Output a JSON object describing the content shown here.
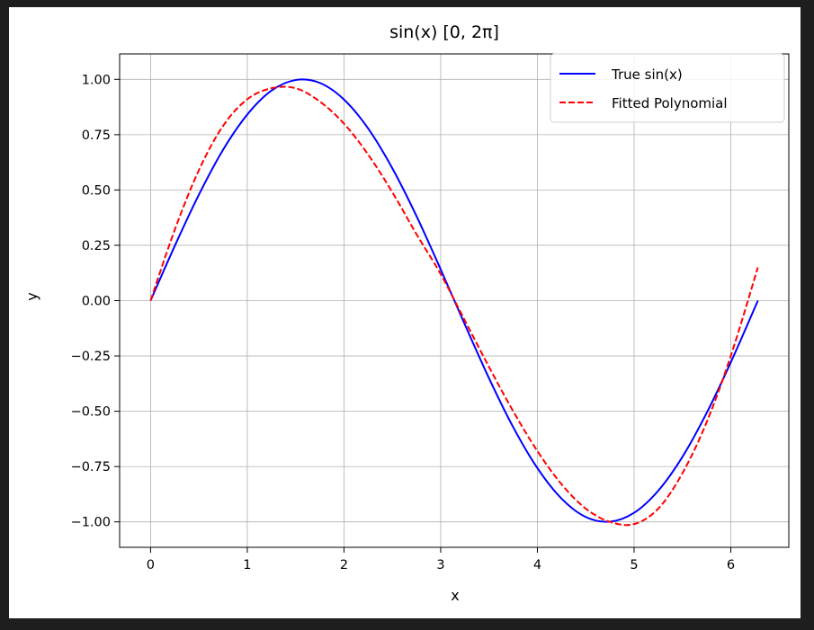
{
  "chart_data": {
    "type": "line",
    "title": "sin(x) [0, 2π]",
    "xlabel": "x",
    "ylabel": "y",
    "xlim": [
      -0.32,
      6.6
    ],
    "ylim": [
      -1.115,
      1.115
    ],
    "xticks": [
      0,
      1,
      2,
      3,
      4,
      5,
      6
    ],
    "xtick_labels": [
      "0",
      "1",
      "2",
      "3",
      "4",
      "5",
      "6"
    ],
    "yticks": [
      1.0,
      0.75,
      0.5,
      0.25,
      0.0,
      -0.25,
      -0.5,
      -0.75,
      -1.0
    ],
    "ytick_labels": [
      "1.00",
      "0.75",
      "0.50",
      "0.25",
      "0.00",
      "−0.25",
      "−0.50",
      "−0.75",
      "−1.00"
    ],
    "grid": true,
    "legend": {
      "placement": "top-right",
      "entries": [
        "True sin(x)",
        "Fitted Polynomial"
      ]
    },
    "series": [
      {
        "name": "True sin(x)",
        "color": "#0000ff",
        "style": "solid",
        "x": [
          0,
          0.25,
          0.5,
          0.75,
          1.0,
          1.25,
          1.5,
          1.75,
          2.0,
          2.25,
          2.5,
          2.75,
          3.0,
          3.25,
          3.5,
          3.75,
          4.0,
          4.25,
          4.5,
          4.75,
          5.0,
          5.25,
          5.5,
          5.75,
          6.0,
          6.28
        ],
        "y": [
          0.0,
          0.247,
          0.479,
          0.682,
          0.841,
          0.949,
          0.997,
          0.984,
          0.909,
          0.778,
          0.598,
          0.382,
          0.141,
          -0.108,
          -0.351,
          -0.572,
          -0.757,
          -0.895,
          -0.978,
          -0.999,
          -0.959,
          -0.859,
          -0.706,
          -0.508,
          -0.279,
          0.0
        ]
      },
      {
        "name": "Fitted Polynomial",
        "color": "#ff0000",
        "style": "dashed",
        "x": [
          0,
          0.25,
          0.5,
          0.75,
          1.0,
          1.25,
          1.5,
          1.75,
          2.0,
          2.25,
          2.5,
          2.75,
          3.0,
          3.25,
          3.5,
          3.75,
          4.0,
          4.25,
          4.5,
          4.75,
          5.0,
          5.25,
          5.5,
          5.75,
          6.0,
          6.28
        ],
        "y": [
          0.0,
          0.32,
          0.59,
          0.79,
          0.91,
          0.96,
          0.96,
          0.9,
          0.8,
          0.66,
          0.49,
          0.3,
          0.12,
          -0.09,
          -0.3,
          -0.5,
          -0.68,
          -0.83,
          -0.94,
          -1.0,
          -1.01,
          -0.94,
          -0.78,
          -0.55,
          -0.25,
          0.15
        ]
      }
    ]
  }
}
